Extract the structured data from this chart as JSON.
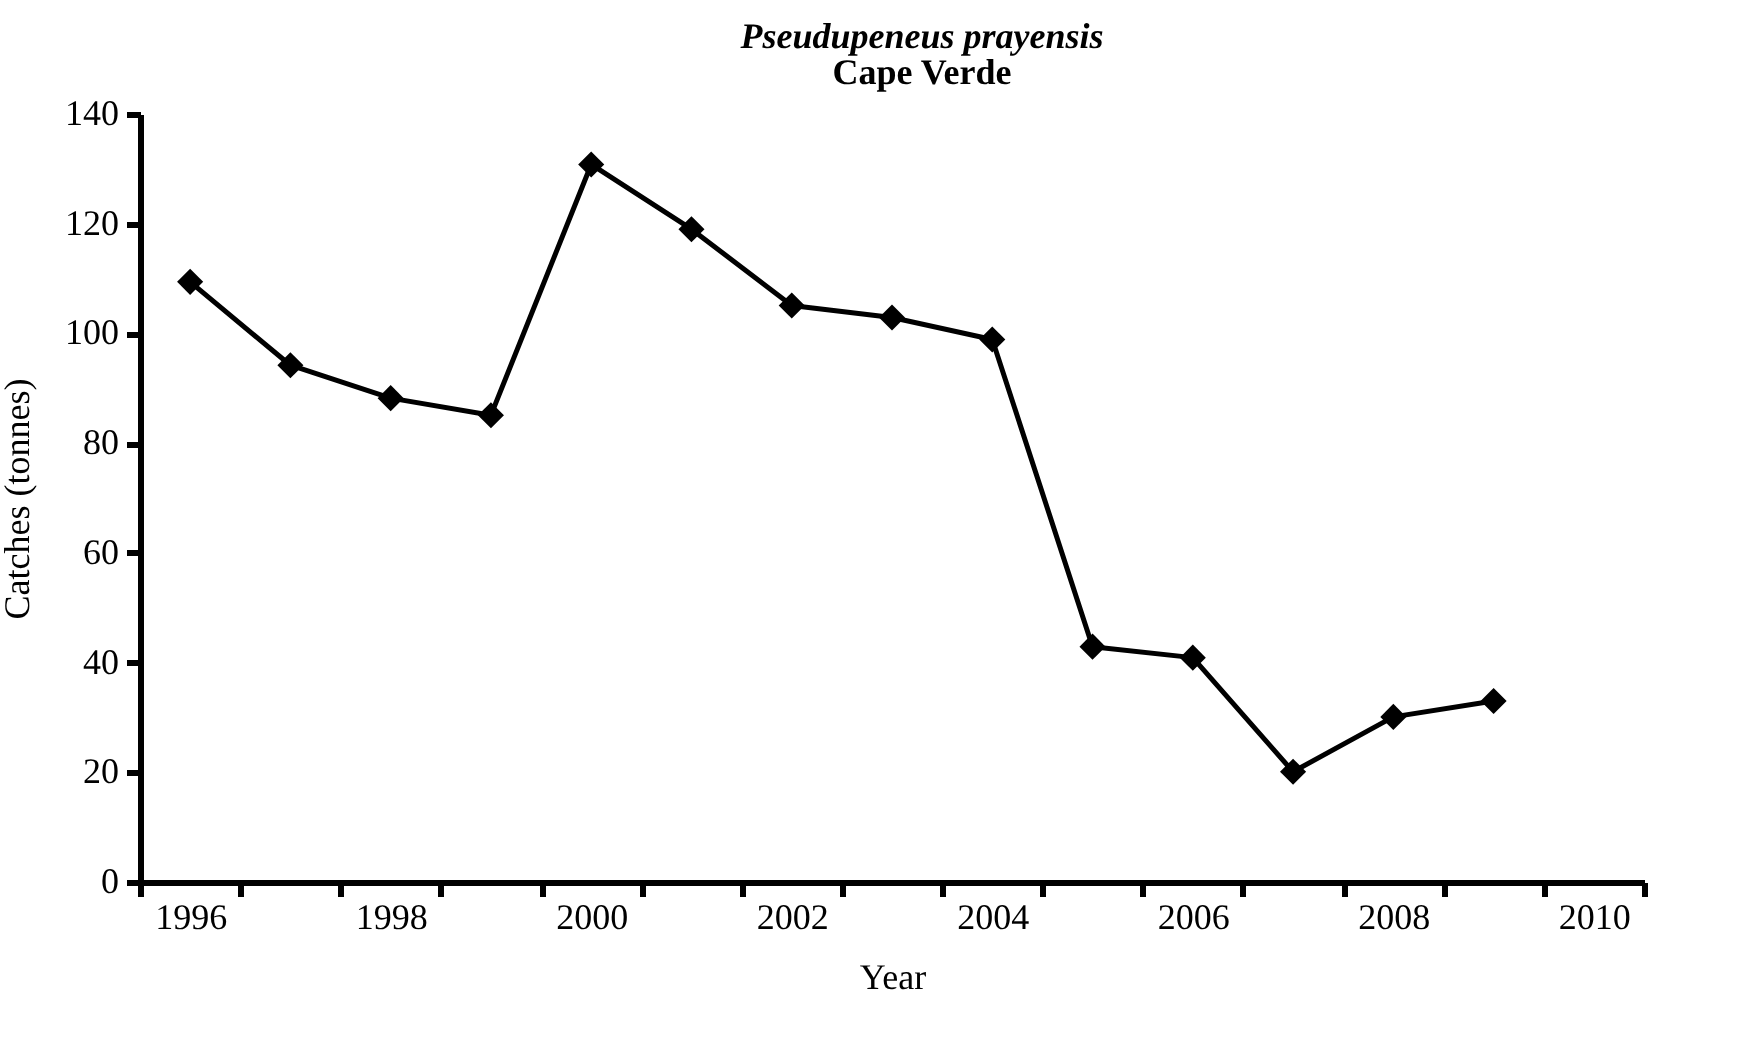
{
  "chart_data": {
    "type": "line",
    "title": "Pseudupeneus prayensis",
    "subtitle": "Cape Verde",
    "xlabel": "Year",
    "ylabel": "Catches (tonnes)",
    "categories": [
      "1996",
      null,
      "1998",
      null,
      "2000",
      null,
      "2002",
      null,
      "2004",
      null,
      "2006",
      null,
      "2008",
      null,
      "2010"
    ],
    "series": [
      {
        "color": "#000000",
        "values": [
          109.4,
          94.2,
          88.2,
          85.1,
          130.8,
          119.0,
          105.1,
          102.9,
          98.9,
          42.9,
          40.9,
          20.1,
          30.1,
          33.0,
          null
        ]
      }
    ],
    "ylim": [
      0,
      140
    ],
    "yticks": [
      0,
      20,
      40,
      60,
      80,
      100,
      120,
      140
    ],
    "marker": "diamond",
    "line_style": "solid",
    "grid": false,
    "legend": false
  }
}
